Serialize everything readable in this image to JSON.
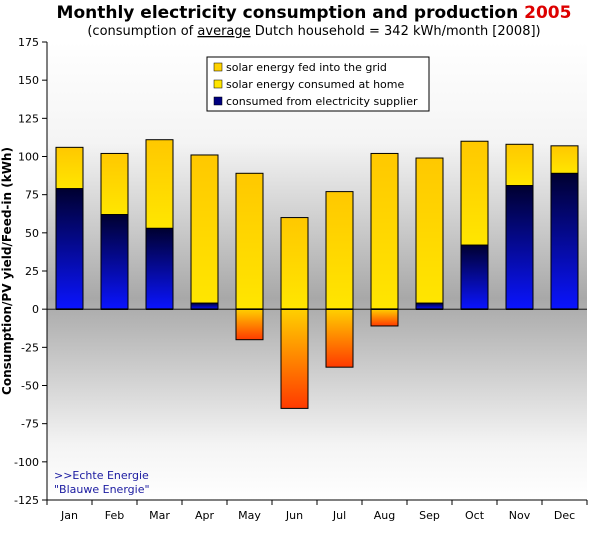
{
  "header": {
    "title_main": "Monthly electricity consumption and production ",
    "title_year": "2005",
    "subtitle_pre": "(consumption of ",
    "subtitle_underlined": "average",
    "subtitle_post": " Dutch household = 342 kWh/month [2008])"
  },
  "credits": {
    "line1": ">>Echte Energie",
    "line2": "\"Blauwe Energie\""
  },
  "colors": {
    "supplier_dark": "#000030",
    "supplier_light": "#0a14ff",
    "home_top": "#ffc800",
    "home_bottom": "#ffe600",
    "grid_top": "#ffd000",
    "grid_bottom": "#ff3a00",
    "title_year": "#dd0000",
    "credit": "#1a1aa0"
  },
  "chart_data": {
    "type": "bar",
    "stacked": true,
    "categories": [
      "Jan",
      "Feb",
      "Mar",
      "Apr",
      "May",
      "Jun",
      "Jul",
      "Aug",
      "Sep",
      "Oct",
      "Nov",
      "Dec"
    ],
    "series": [
      {
        "name": "solar energy fed into the grid",
        "values": [
          0,
          0,
          0,
          0,
          -20,
          -65,
          -38,
          -11,
          0,
          0,
          0,
          0
        ]
      },
      {
        "name": "solar energy consumed at home",
        "values": [
          27,
          40,
          58,
          97,
          89,
          60,
          77,
          102,
          95,
          68,
          27,
          18
        ]
      },
      {
        "name": "consumed from electricity supplier",
        "values": [
          79,
          62,
          53,
          4,
          0,
          0,
          0,
          0,
          4,
          42,
          81,
          89
        ]
      }
    ],
    "ylabel": "Consumption/PV yield/Feed-in (kWh)",
    "ylim": [
      -125,
      175
    ],
    "yticks": [
      175,
      150,
      125,
      100,
      75,
      50,
      25,
      0,
      -25,
      -50,
      -75,
      -100,
      -125
    ],
    "legend": "top-center",
    "grid": false
  }
}
